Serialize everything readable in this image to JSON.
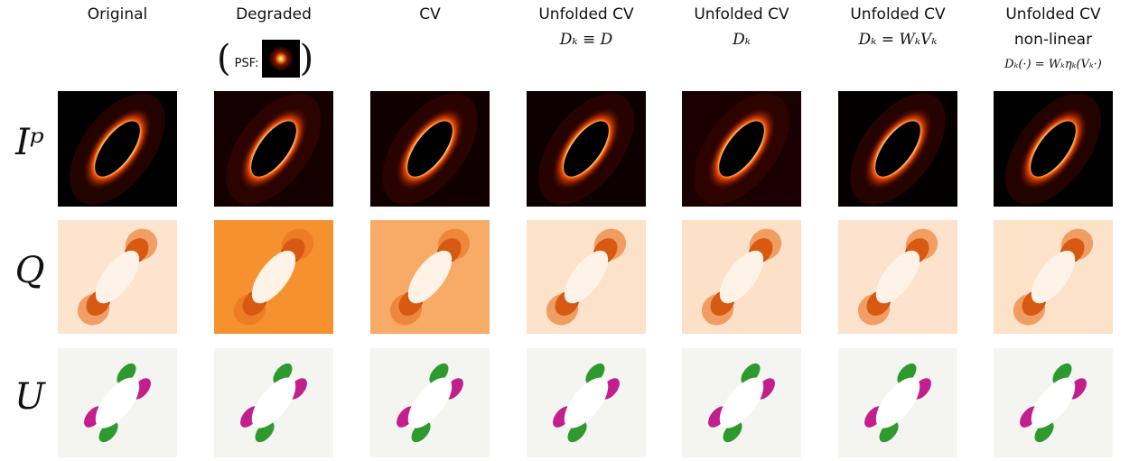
{
  "columns": [
    {
      "title": "Original"
    },
    {
      "title": "Degraded",
      "note": "PSF:"
    },
    {
      "title": "CV"
    },
    {
      "title": "Unfolded CV",
      "subtitle": "Dₖ ≡ D"
    },
    {
      "title": "Unfolded CV",
      "subtitle": "Dₖ"
    },
    {
      "title": "Unfolded CV",
      "subtitle": "Dₖ = WₖVₖ"
    },
    {
      "title": "Unfolded CV",
      "subtitle": "non-linear",
      "formula": "Dₖ(·) = Wₖηₖ(Vₖ·)"
    }
  ],
  "rows": [
    {
      "label": "Iᵖ"
    },
    {
      "label": "Q"
    },
    {
      "label": "U"
    }
  ]
}
